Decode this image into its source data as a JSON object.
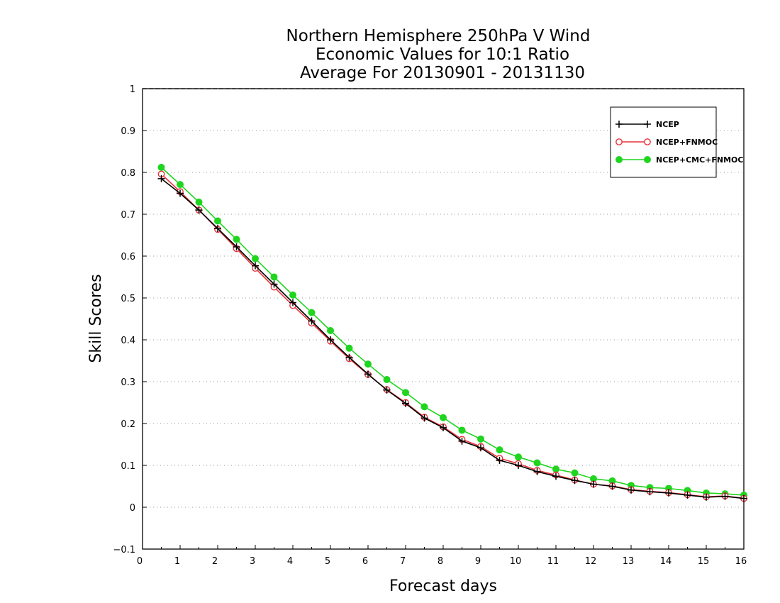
{
  "chart_data": {
    "type": "line",
    "title": [
      "Northern Hemisphere 250hPa V Wind",
      "Economic Values for 10:1 Ratio",
      "Average For 20130901 - 20131130"
    ],
    "xlabel": "Forecast days",
    "ylabel": "Skill Scores",
    "xlim": [
      0,
      16
    ],
    "ylim": [
      -0.1,
      1
    ],
    "x_ticks": [
      0,
      1,
      2,
      3,
      4,
      5,
      6,
      7,
      8,
      9,
      10,
      11,
      12,
      13,
      14,
      15,
      16
    ],
    "x_tick_labels": [
      "0",
      "1",
      "2",
      "3",
      "4",
      "5",
      "6",
      "7",
      "8",
      "9",
      "10",
      "11",
      "12",
      "13",
      "14",
      "15",
      "16"
    ],
    "y_ticks": [
      -0.1,
      0,
      0.1,
      0.2,
      0.3,
      0.4,
      0.5,
      0.6,
      0.7,
      0.8,
      0.9,
      1
    ],
    "y_tick_labels": [
      "−0.1",
      "0",
      "0.1",
      "0.2",
      "0.3",
      "0.4",
      "0.5",
      "0.6",
      "0.7",
      "0.8",
      "0.9",
      "1"
    ],
    "grid": "horizontal dotted",
    "legend_position": "top-right",
    "x": [
      0.5,
      1,
      1.5,
      2,
      2.5,
      3,
      3.5,
      4,
      4.5,
      5,
      5.5,
      6,
      6.5,
      7,
      7.5,
      8,
      8.5,
      9,
      9.5,
      10,
      10.5,
      11,
      11.5,
      12,
      12.5,
      13,
      13.5,
      14,
      14.5,
      15,
      15.5,
      16
    ],
    "series": [
      {
        "name": "NCEP",
        "color": "#000000",
        "marker": "plus",
        "values": [
          0.785,
          0.75,
          0.71,
          0.666,
          0.622,
          0.577,
          0.533,
          0.489,
          0.445,
          0.4,
          0.358,
          0.318,
          0.28,
          0.248,
          0.213,
          0.19,
          0.158,
          0.142,
          0.112,
          0.1,
          0.085,
          0.074,
          0.064,
          0.055,
          0.05,
          0.041,
          0.037,
          0.034,
          0.029,
          0.024,
          0.026,
          0.021
        ]
      },
      {
        "name": "NCEP+FNMOC",
        "color": "#e8333a",
        "marker": "open-circle",
        "values": [
          0.796,
          0.754,
          0.71,
          0.664,
          0.618,
          0.571,
          0.526,
          0.482,
          0.44,
          0.397,
          0.355,
          0.317,
          0.281,
          0.25,
          0.215,
          0.192,
          0.162,
          0.145,
          0.117,
          0.104,
          0.088,
          0.077,
          0.065,
          0.055,
          0.051,
          0.042,
          0.038,
          0.035,
          0.03,
          0.025,
          0.027,
          0.021
        ]
      },
      {
        "name": "NCEP+CMC+FNMOC",
        "color": "#1fd51f",
        "marker": "filled-circle",
        "values": [
          0.812,
          0.771,
          0.729,
          0.684,
          0.64,
          0.594,
          0.55,
          0.507,
          0.465,
          0.422,
          0.38,
          0.342,
          0.305,
          0.274,
          0.24,
          0.214,
          0.184,
          0.163,
          0.137,
          0.12,
          0.106,
          0.091,
          0.082,
          0.068,
          0.063,
          0.052,
          0.047,
          0.045,
          0.04,
          0.034,
          0.032,
          0.029
        ]
      }
    ]
  }
}
